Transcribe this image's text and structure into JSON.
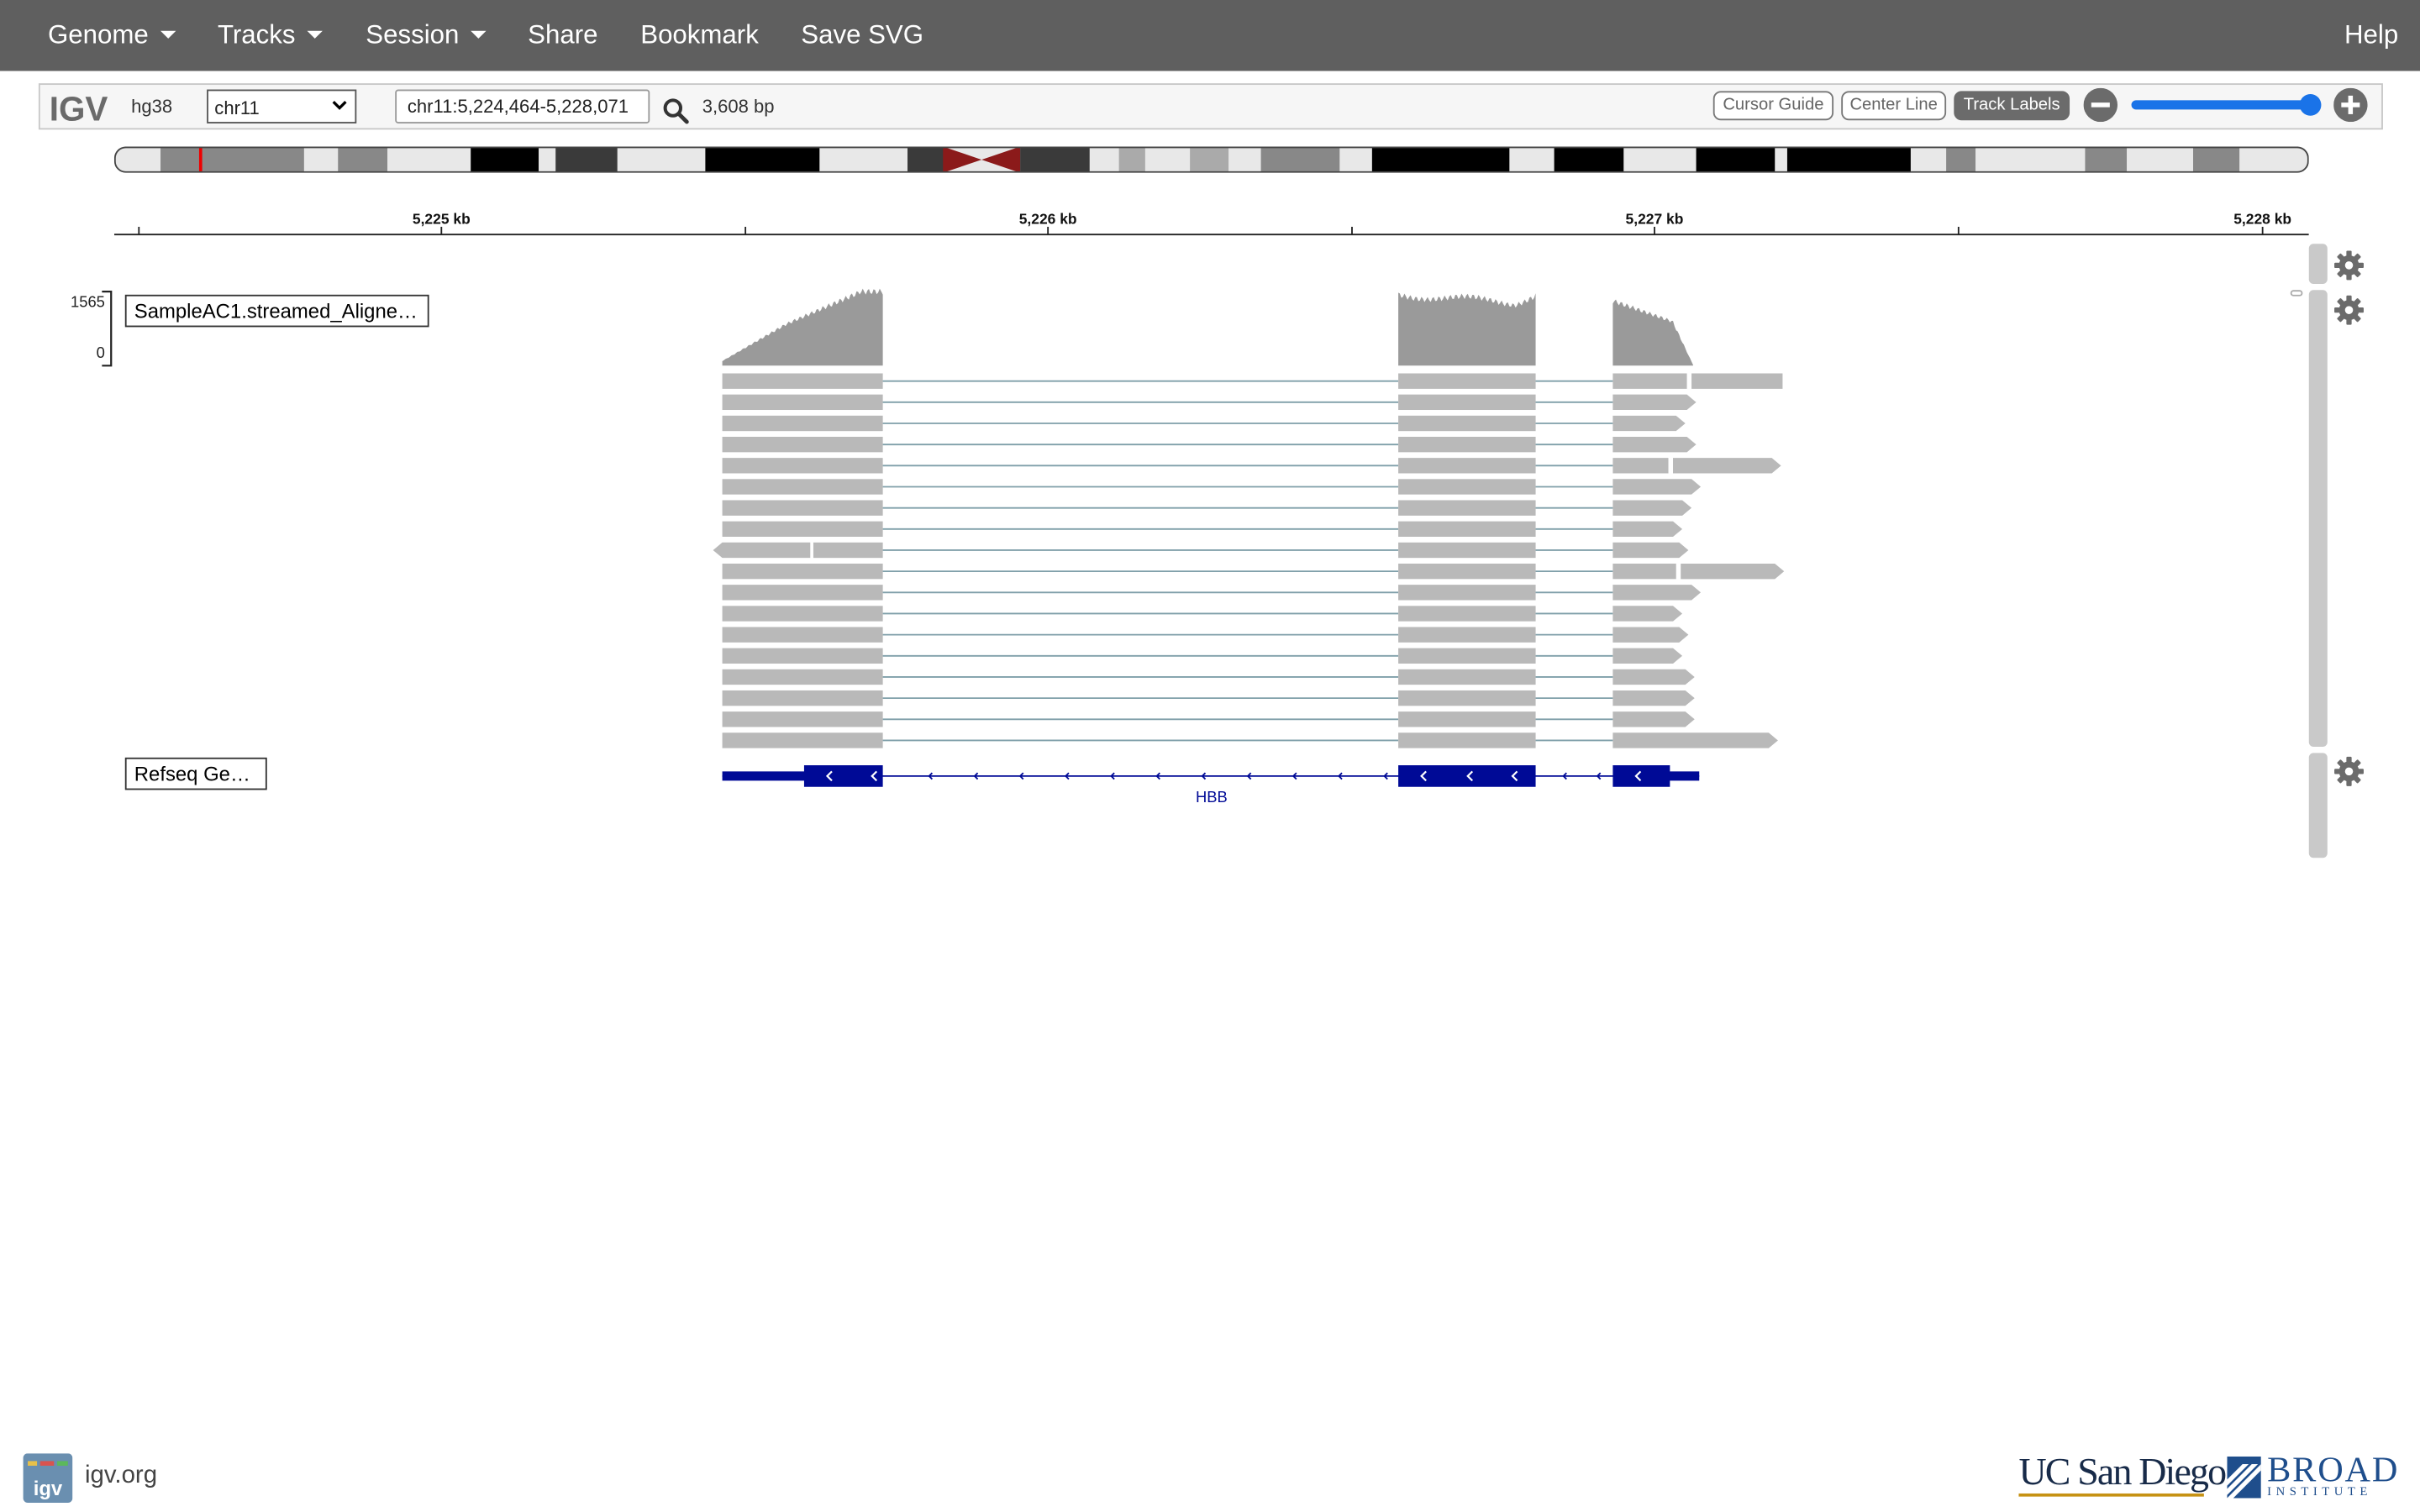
{
  "navbar": {
    "genome_label": "Genome",
    "tracks_label": "Tracks",
    "session_label": "Session",
    "share_label": "Share",
    "bookmark_label": "Bookmark",
    "save_svg_label": "Save SVG",
    "help_label": "Help",
    "bg_color": "#5f5f5f"
  },
  "toolbar": {
    "logo": "IGV",
    "genome": "hg38",
    "chromosome": "chr11",
    "locus": "chr11:5,224,464-5,228,071",
    "bp_width": "3,608 bp",
    "cursor_guide_label": "Cursor Guide",
    "center_line_label": "Center Line",
    "track_labels_label": "Track Labels",
    "track_labels_active": true,
    "zoom_level": 0.97
  },
  "ruler": {
    "ticks": [
      "5,225 kb",
      "5,226 kb",
      "5,227 kb",
      "5,228 kb"
    ]
  },
  "tracks": {
    "alignment": {
      "name": "SampleAC1.streamed_Aligne…",
      "coverage_max": "1565",
      "coverage_min": "0",
      "coverage_color": "#9a9a9a",
      "read_color": "#b9b9b9",
      "junction_color": "#7f9fa9"
    },
    "refseq": {
      "name": "Refseq Genes",
      "gene": "HBB",
      "gene_color": "#000a96"
    }
  },
  "footer": {
    "igv_link": "igv.org",
    "ucsd": "UC San Diego",
    "broad": "BROAD",
    "broad_sub": "INSTITUTE"
  }
}
